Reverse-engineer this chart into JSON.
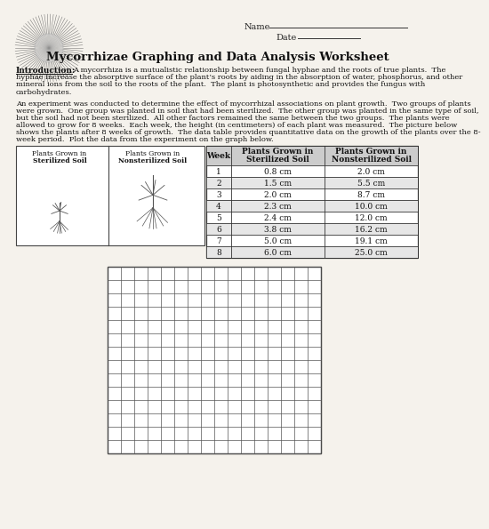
{
  "title": "Mycorrhizae Graphing and Data Analysis Worksheet",
  "intro_label": "Introduction:",
  "intro_text": "A mycorrhiza is a mutualistic relationship between fungal hyphae and the roots of true plants.",
  "name_label": "Name",
  "date_label": "Date",
  "weeks": [
    1,
    2,
    3,
    4,
    5,
    6,
    7,
    8
  ],
  "sterilized": [
    "0.8 cm",
    "1.5 cm",
    "2.0 cm",
    "2.3 cm",
    "2.4 cm",
    "3.8 cm",
    "5.0 cm",
    "6.0 cm"
  ],
  "nonsterilized": [
    "2.0 cm",
    "5.5 cm",
    "8.7 cm",
    "10.0 cm",
    "12.0 cm",
    "16.2 cm",
    "19.1 cm",
    "25.0 cm"
  ],
  "grid_rows": 14,
  "grid_cols": 16,
  "bg_color": "#f5f2ec",
  "intro_body_lines": [
    "A mycorrhiza is a mutualistic relationship between fungal hyphae and the roots of true plants.  The",
    "hyphae increase the absorptive surface of the plant’s roots by aiding in the absorption of water, phosphorus, and other",
    "mineral ions from the soil to the roots of the plant.  The plant is photosynthetic and provides the fungus with",
    "carbohydrates."
  ],
  "para2_lines": [
    "An experiment was conducted to determine the effect of mycorrhizal associations on plant growth.  Two groups of plants",
    "were grown.  One group was planted in soil that had been sterilized.  The other group was planted in the same type of soil,",
    "but the soil had not been sterilized.  All other factors remained the same between the two groups.  The plants were",
    "allowed to grow for 8 weeks.  Each week, the height (in centimeters) of each plant was measured.  The picture below",
    "shows the plants after 8 weeks of growth.  The data table provides quantitative data on the growth of the plants over the 8-",
    "week period.  Plot the data from the experiment on the graph below."
  ]
}
